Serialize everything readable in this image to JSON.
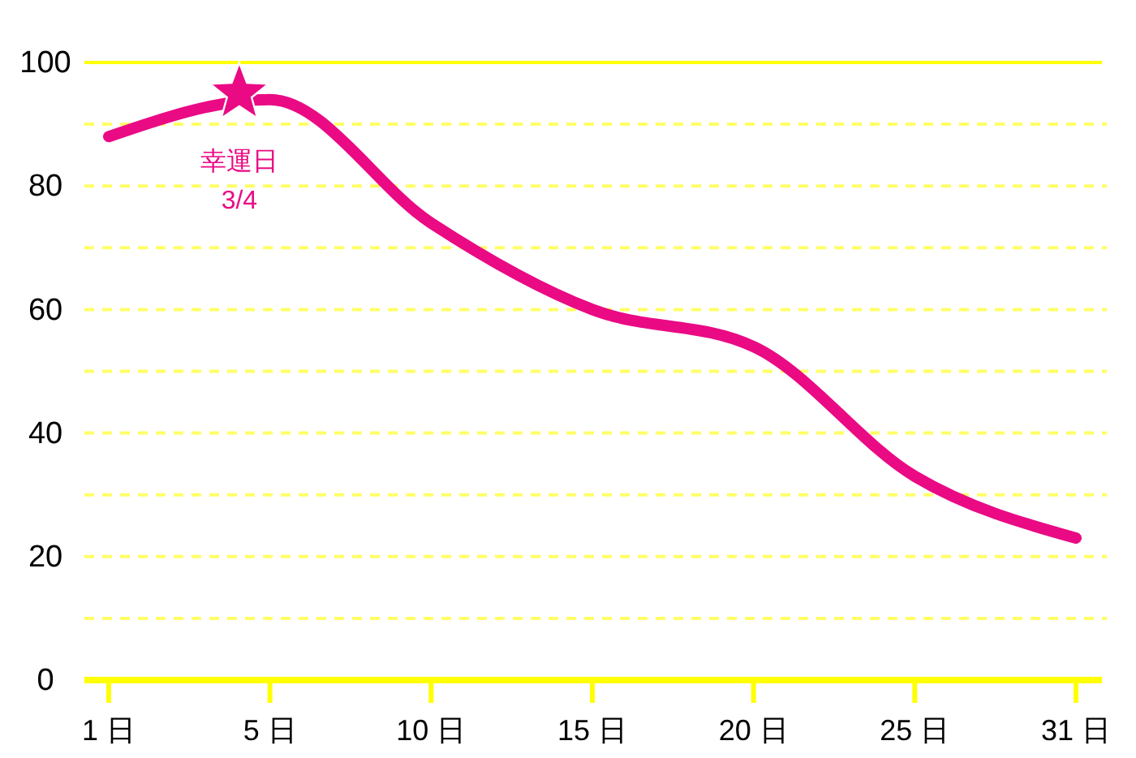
{
  "chart_data": {
    "type": "line",
    "categories": [
      "1 日",
      "5 日",
      "10 日",
      "15 日",
      "20 日",
      "25 日",
      "31 日"
    ],
    "values": [
      88,
      94,
      74,
      60,
      54,
      33,
      23
    ],
    "color": "#ea0a84",
    "ylim": [
      0,
      100
    ],
    "yticks": [
      0,
      {
        "value": 10,
        "label": null
      },
      20,
      {
        "value": 30,
        "label": null
      },
      40,
      {
        "value": 50,
        "label": null
      },
      60,
      {
        "value": 70,
        "label": null
      },
      80,
      {
        "value": 90,
        "label": null
      },
      100
    ],
    "grid": "y",
    "annotations": [
      {
        "text": "幸運日\n3/4",
        "y": 95
      }
    ]
  }
}
